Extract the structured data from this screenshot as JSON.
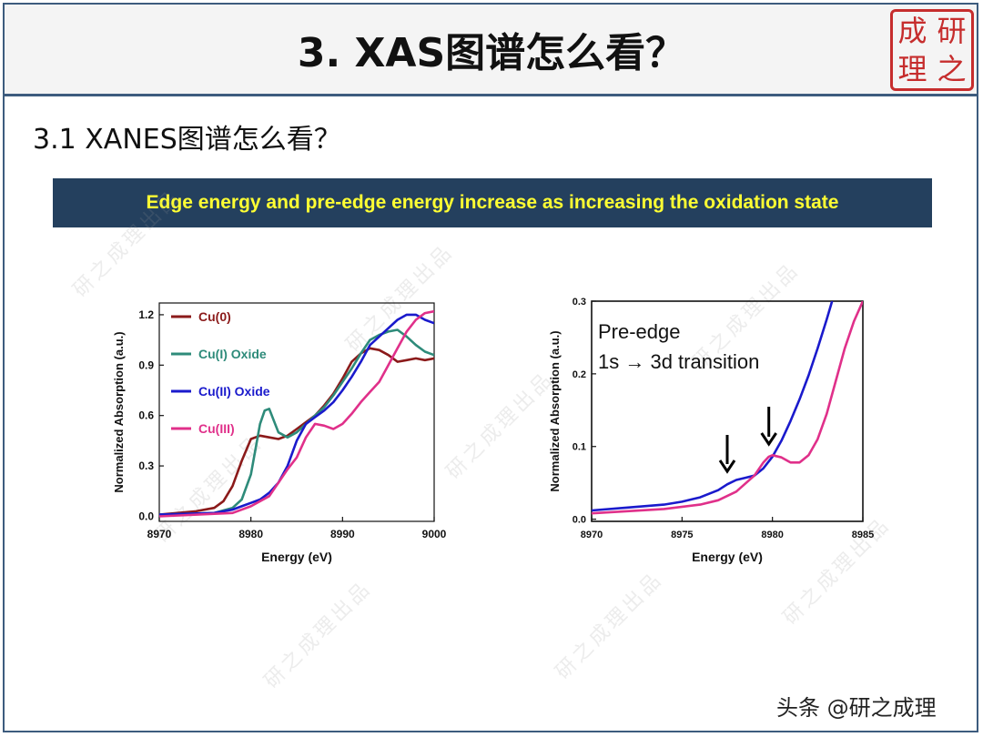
{
  "title": "3. XAS图谱怎么看？",
  "subtitle": "3.1 XANES图谱怎么看？",
  "banner": "Edge energy and pre-edge energy increase as increasing the oxidation state",
  "seal": [
    "成",
    "研",
    "理",
    "之"
  ],
  "footer": "头条 @研之成理",
  "watermark": "研之成理出品",
  "colors": {
    "frame": "#3d5c7e",
    "banner_bg": "#24405e",
    "banner_text": "#ffff33",
    "seal": "#c62d2d"
  },
  "chart_data": [
    {
      "type": "line",
      "xlabel": "Energy (eV)",
      "ylabel": "Normalized Absorption (a.u.)",
      "xlim": [
        8970,
        9000
      ],
      "ylim": [
        -0.03,
        1.27
      ],
      "xticks": [
        8970,
        8980,
        8990,
        9000
      ],
      "xtick_labels": [
        "8970",
        "8980",
        "8990",
        "9000"
      ],
      "yticks": [
        0.0,
        0.3,
        0.6,
        0.9,
        1.2
      ],
      "ytick_labels": [
        "0.0",
        "0.3",
        "0.6",
        "0.9",
        "1.2"
      ],
      "legend_position": "top-left",
      "series": [
        {
          "name": "Cu(0)",
          "color": "#8b1a1a",
          "x": [
            8970,
            8974,
            8976,
            8977,
            8978,
            8979,
            8980,
            8981,
            8982,
            8983,
            8984,
            8985,
            8986,
            8987,
            8988,
            8989,
            8990,
            8991,
            8992,
            8993,
            8994,
            8995,
            8996,
            8997,
            8998,
            8999,
            9000
          ],
          "y": [
            0.01,
            0.03,
            0.05,
            0.09,
            0.18,
            0.33,
            0.46,
            0.48,
            0.47,
            0.46,
            0.48,
            0.52,
            0.56,
            0.6,
            0.66,
            0.73,
            0.82,
            0.92,
            0.97,
            1.0,
            0.99,
            0.96,
            0.92,
            0.93,
            0.94,
            0.93,
            0.94
          ]
        },
        {
          "name": "Cu(I) Oxide",
          "color": "#2e8b7a",
          "x": [
            8970,
            8976,
            8978,
            8979,
            8980,
            8980.5,
            8981,
            8981.5,
            8982,
            8982.5,
            8983,
            8984,
            8985,
            8986,
            8987,
            8988,
            8989,
            8990,
            8991,
            8992,
            8993,
            8994,
            8995,
            8996,
            8997,
            8998,
            8999,
            9000
          ],
          "y": [
            0.01,
            0.02,
            0.05,
            0.1,
            0.25,
            0.4,
            0.55,
            0.63,
            0.64,
            0.57,
            0.5,
            0.47,
            0.5,
            0.55,
            0.6,
            0.65,
            0.72,
            0.8,
            0.88,
            0.97,
            1.05,
            1.08,
            1.1,
            1.11,
            1.07,
            1.02,
            0.98,
            0.96
          ]
        },
        {
          "name": "Cu(II) Oxide",
          "color": "#1a1acc",
          "x": [
            8970,
            8976,
            8978,
            8979,
            8980,
            8981,
            8982,
            8983,
            8984,
            8985,
            8986,
            8987,
            8988,
            8989,
            8990,
            8991,
            8992,
            8993,
            8994,
            8995,
            8996,
            8997,
            8998,
            8999,
            9000
          ],
          "y": [
            0.01,
            0.02,
            0.04,
            0.06,
            0.08,
            0.1,
            0.14,
            0.2,
            0.3,
            0.45,
            0.55,
            0.59,
            0.63,
            0.68,
            0.75,
            0.83,
            0.92,
            1.02,
            1.07,
            1.12,
            1.17,
            1.2,
            1.2,
            1.17,
            1.15
          ]
        },
        {
          "name": "Cu(III)",
          "color": "#e0308a",
          "x": [
            8970,
            8978,
            8980,
            8982,
            8983,
            8984,
            8985,
            8986,
            8987,
            8988,
            8989,
            8990,
            8991,
            8992,
            8993,
            8994,
            8995,
            8996,
            8997,
            8998,
            8999,
            9000
          ],
          "y": [
            0.0,
            0.02,
            0.06,
            0.12,
            0.2,
            0.28,
            0.35,
            0.47,
            0.55,
            0.54,
            0.52,
            0.55,
            0.61,
            0.68,
            0.74,
            0.8,
            0.9,
            1.0,
            1.1,
            1.17,
            1.21,
            1.22
          ]
        }
      ]
    },
    {
      "type": "line",
      "xlabel": "Energy (eV)",
      "ylabel": "Normalized Absorption (a.u.)",
      "xlim": [
        8970,
        8985
      ],
      "ylim": [
        -0.003,
        0.3
      ],
      "xticks": [
        8970,
        8975,
        8980,
        8985
      ],
      "xtick_labels": [
        "8970",
        "8975",
        "8980",
        "8985"
      ],
      "yticks": [
        0.0,
        0.1,
        0.2,
        0.3
      ],
      "ytick_labels": [
        "0.0",
        "0.1",
        "0.2",
        "0.3"
      ],
      "annotations": [
        "Pre-edge",
        "1s → 3d transition"
      ],
      "arrows_at_x": [
        8977.5,
        8979.8
      ],
      "series": [
        {
          "color": "#1a1acc",
          "x": [
            8970,
            8972,
            8974,
            8975,
            8976,
            8977,
            8977.5,
            8978,
            8978.5,
            8979,
            8979.5,
            8980,
            8980.5,
            8981,
            8981.5,
            8982,
            8982.5,
            8983,
            8983.3
          ],
          "y": [
            0.012,
            0.016,
            0.02,
            0.024,
            0.03,
            0.04,
            0.048,
            0.054,
            0.057,
            0.06,
            0.07,
            0.086,
            0.108,
            0.135,
            0.165,
            0.198,
            0.235,
            0.275,
            0.3
          ]
        },
        {
          "color": "#e0308a",
          "x": [
            8970,
            8972,
            8974,
            8976,
            8977,
            8978,
            8979,
            8979.5,
            8979.8,
            8980,
            8980.5,
            8981,
            8981.5,
            8982,
            8982.5,
            8983,
            8983.5,
            8984,
            8984.5,
            8985
          ],
          "y": [
            0.008,
            0.011,
            0.014,
            0.02,
            0.026,
            0.038,
            0.06,
            0.078,
            0.086,
            0.088,
            0.085,
            0.078,
            0.078,
            0.088,
            0.11,
            0.145,
            0.19,
            0.235,
            0.272,
            0.3
          ]
        }
      ]
    }
  ]
}
